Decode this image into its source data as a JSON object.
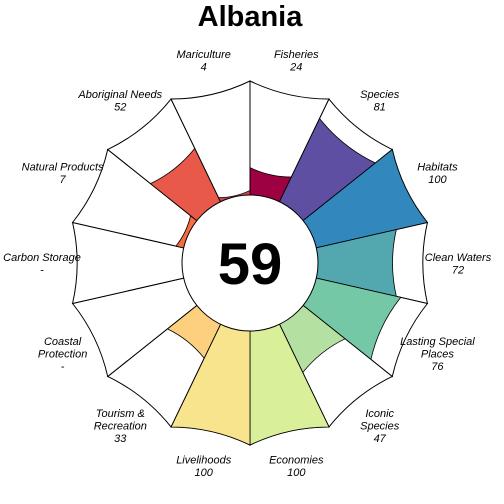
{
  "chart_data": {
    "type": "flower",
    "title": "Albania",
    "center_score": "59",
    "scale": [
      0,
      100
    ],
    "colors": {
      "outline": "#000000",
      "center_fill": "#ffffff",
      "background": "#ffffff"
    },
    "petals": [
      {
        "name": "Fisheries",
        "label_lines": [
          "Fisheries"
        ],
        "value_text": "24",
        "value": 24,
        "color": "#9e0142"
      },
      {
        "name": "Species",
        "label_lines": [
          "Species"
        ],
        "value_text": "81",
        "value": 81,
        "color": "#5e4fa2"
      },
      {
        "name": "Habitats",
        "label_lines": [
          "Habitats"
        ],
        "value_text": "100",
        "value": 100,
        "color": "#3288bd"
      },
      {
        "name": "Clean Waters",
        "label_lines": [
          "Clean Waters"
        ],
        "value_text": "72",
        "value": 72,
        "color": "#52a8ae"
      },
      {
        "name": "Lasting Special Places",
        "label_lines": [
          "Lasting Special",
          "Places"
        ],
        "value_text": "76",
        "value": 76,
        "color": "#74c8a6"
      },
      {
        "name": "Iconic Species",
        "label_lines": [
          "Iconic",
          "Species"
        ],
        "value_text": "47",
        "value": 47,
        "color": "#b4e0a2"
      },
      {
        "name": "Economies",
        "label_lines": [
          "Economies"
        ],
        "value_text": "100",
        "value": 100,
        "color": "#d9ef9a"
      },
      {
        "name": "Livelihoods",
        "label_lines": [
          "Livelihoods"
        ],
        "value_text": "100",
        "value": 100,
        "color": "#f7e48c"
      },
      {
        "name": "Tourism & Recreation",
        "label_lines": [
          "Tourism &",
          "Recreation"
        ],
        "value_text": "33",
        "value": 33,
        "color": "#fdd07f"
      },
      {
        "name": "Coastal Protection",
        "label_lines": [
          "Coastal",
          "Protection"
        ],
        "value_text": "-",
        "value": null,
        "color": "#fdae61"
      },
      {
        "name": "Carbon Storage",
        "label_lines": [
          "Carbon Storage"
        ],
        "value_text": "-",
        "value": null,
        "color": "#f88d52"
      },
      {
        "name": "Natural Products",
        "label_lines": [
          "Natural Products"
        ],
        "value_text": "7",
        "value": 7,
        "color": "#f46d43"
      },
      {
        "name": "Aboriginal Needs",
        "label_lines": [
          "Aboriginal Needs"
        ],
        "value_text": "52",
        "value": 52,
        "color": "#e8594a"
      },
      {
        "name": "Mariculture",
        "label_lines": [
          "Mariculture"
        ],
        "value_text": "4",
        "value": 4,
        "color": "#d53e4f"
      }
    ]
  }
}
